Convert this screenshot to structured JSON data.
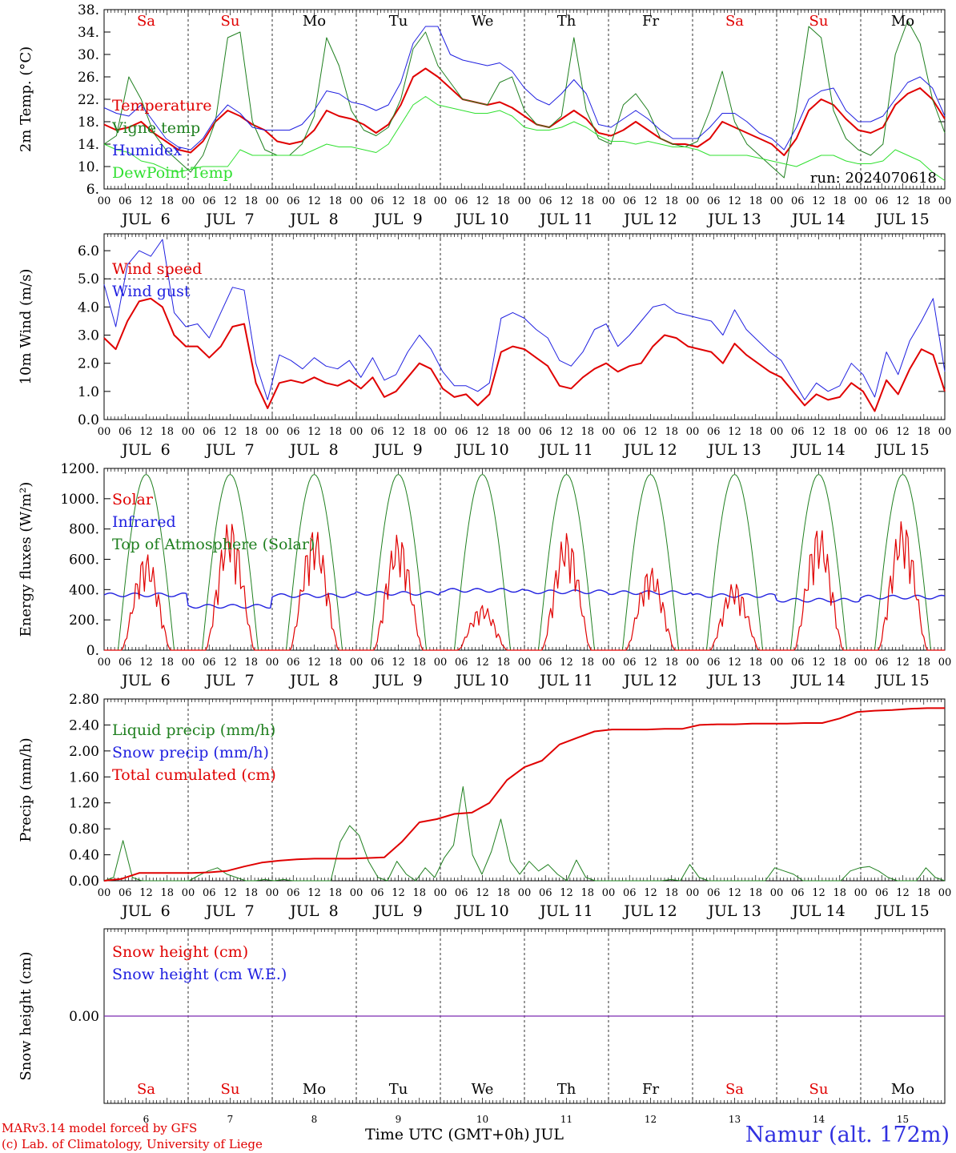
{
  "footer": {
    "model_line": "MARv3.14 model forced by GFS",
    "credit_line": "(c) Lab. of Climatology, University of Liege",
    "station": "Namur (alt. 172m)",
    "x_axis_label": "Time UTC (GMT+0h) JUL"
  },
  "chart_data": [
    {
      "type": "line",
      "id": "temperature",
      "ylabel": "2m Temp. (°C)",
      "ylim": [
        6,
        38
      ],
      "yticks": [
        "6.",
        "10.",
        "14.",
        "18.",
        "22.",
        "26.",
        "30.",
        "34.",
        "38."
      ],
      "annotation": "run: 2024070618",
      "weekdays": [
        "Sa",
        "Su",
        "Mo",
        "Tu",
        "We",
        "Th",
        "Fr",
        "Sa",
        "Su",
        "Mo"
      ],
      "weekday_colors": [
        "#e00000",
        "#e00000",
        "#000000",
        "#000000",
        "#000000",
        "#000000",
        "#000000",
        "#e00000",
        "#e00000",
        "#000000"
      ],
      "day_labels": [
        "JUL  6",
        "JUL  7",
        "JUL  8",
        "JUL  9",
        "JUL 10",
        "JUL 11",
        "JUL 12",
        "JUL 13",
        "JUL 14",
        "JUL 15"
      ],
      "hour_labels": [
        "00",
        "06",
        "12",
        "18"
      ],
      "x_hours": [
        0,
        3,
        6,
        9,
        12,
        15,
        18,
        21,
        24,
        27,
        30,
        33,
        36,
        39,
        42,
        45,
        48,
        51,
        54,
        57,
        60,
        63,
        66,
        69,
        72,
        75,
        78,
        81,
        84,
        87,
        90,
        93,
        96,
        99,
        102,
        105,
        108,
        111,
        114,
        117,
        120,
        123,
        126,
        129,
        132,
        135,
        138,
        141,
        144,
        147,
        150,
        153,
        156,
        159,
        162,
        165,
        168,
        171,
        174,
        177,
        180,
        183,
        186,
        189,
        192,
        195,
        198,
        201,
        204,
        207,
        210,
        213,
        216,
        219,
        222,
        225,
        228,
        231,
        234,
        237,
        240
      ],
      "series": [
        {
          "name": "Temperature",
          "color": "#e00000",
          "width": 2,
          "values": [
            17.5,
            16.5,
            17,
            18,
            16,
            14.5,
            13,
            12.5,
            14.5,
            18,
            20,
            19,
            17.5,
            16.5,
            14.5,
            14,
            14.5,
            16.5,
            20,
            19,
            18.5,
            17.5,
            16,
            17.5,
            21,
            26,
            27.5,
            26,
            24,
            22,
            21.5,
            21,
            21.5,
            20.5,
            19,
            17.5,
            17,
            18.5,
            20,
            18.5,
            16,
            15.5,
            16.5,
            18,
            16.5,
            15,
            14,
            14,
            13.5,
            15,
            18,
            17,
            16,
            15,
            14,
            12,
            15,
            20,
            22,
            21,
            18.5,
            16.5,
            16,
            17,
            21,
            23,
            24,
            22,
            18.5
          ]
        },
        {
          "name": "Vigne temp",
          "color": "#208020",
          "width": 1,
          "values": [
            14,
            15.5,
            26,
            22,
            16,
            13,
            11,
            9,
            12,
            18,
            33,
            34,
            18,
            13,
            12,
            12,
            14,
            19,
            33,
            28,
            20,
            16.5,
            15.5,
            17,
            22,
            31,
            34,
            28,
            25,
            22,
            21.5,
            21,
            25,
            26,
            20,
            17.5,
            17,
            19,
            33,
            20,
            15,
            14,
            21,
            23,
            20,
            15,
            14,
            13.5,
            14.5,
            20,
            27,
            18,
            14,
            12,
            10,
            8,
            20,
            35,
            33,
            20,
            15,
            13,
            12,
            14,
            30,
            36,
            32,
            22,
            16
          ]
        },
        {
          "name": "Humidex",
          "color": "#2020e0",
          "width": 1,
          "values": [
            20.5,
            19.5,
            19,
            21,
            18,
            15,
            13.5,
            13,
            15,
            18.5,
            21,
            19.5,
            17,
            16.5,
            16.5,
            16.5,
            17.5,
            20,
            23.5,
            23,
            21.5,
            21,
            20,
            21,
            25,
            32,
            35,
            35,
            30,
            29,
            28.5,
            28,
            28.5,
            27,
            24,
            22,
            21,
            23,
            25.5,
            23,
            17.5,
            17,
            18.5,
            20,
            18.5,
            16.5,
            15,
            15,
            15,
            17,
            19.5,
            19.5,
            18,
            16,
            15,
            13,
            17,
            22,
            23.5,
            24,
            20,
            18,
            18,
            19,
            22,
            25,
            26,
            24,
            19
          ]
        },
        {
          "name": "DewPoint Temp",
          "color": "#30e030",
          "width": 1,
          "values": [
            14,
            13,
            12.5,
            11,
            10.5,
            9.5,
            9,
            9.5,
            10,
            10,
            10,
            13,
            12,
            12,
            12,
            12,
            12,
            13,
            14,
            13.5,
            13.5,
            13,
            12.5,
            14,
            17.5,
            21,
            22.5,
            21,
            20.5,
            20,
            19.5,
            19.5,
            20,
            19,
            17,
            16.5,
            16.5,
            17,
            18,
            17,
            15.5,
            14.5,
            14.5,
            14,
            14.5,
            14,
            13.5,
            13.5,
            13,
            12,
            12,
            12,
            12,
            11.5,
            11,
            10.5,
            10,
            11,
            12,
            12,
            11,
            10.5,
            10.5,
            11,
            13,
            12,
            11,
            9,
            7.5
          ]
        }
      ]
    },
    {
      "type": "line",
      "id": "wind",
      "ylabel": "10m Wind (m/s)",
      "ylim": [
        0,
        6.6
      ],
      "yticks": [
        "0.0",
        "1.0",
        "2.0",
        "3.0",
        "4.0",
        "5.0",
        "6.0"
      ],
      "ref_line": 5.0,
      "day_labels": [
        "JUL  6",
        "JUL  7",
        "JUL  8",
        "JUL  9",
        "JUL 10",
        "JUL 11",
        "JUL 12",
        "JUL 13",
        "JUL 14",
        "JUL 15"
      ],
      "hour_labels": [
        "00",
        "06",
        "12",
        "18"
      ],
      "series": [
        {
          "name": "Wind speed",
          "color": "#e00000",
          "width": 2,
          "values": [
            2.9,
            2.5,
            3.5,
            4.2,
            4.3,
            4.0,
            3.0,
            2.6,
            2.6,
            2.2,
            2.6,
            3.3,
            3.4,
            1.3,
            0.4,
            1.3,
            1.4,
            1.3,
            1.5,
            1.3,
            1.2,
            1.4,
            1.1,
            1.5,
            0.8,
            1.0,
            1.5,
            2.0,
            1.8,
            1.1,
            0.8,
            0.9,
            0.5,
            0.9,
            2.4,
            2.6,
            2.5,
            2.2,
            1.9,
            1.2,
            1.1,
            1.5,
            1.8,
            2.0,
            1.7,
            1.9,
            2.0,
            2.6,
            3.0,
            2.9,
            2.6,
            2.5,
            2.4,
            2.0,
            2.7,
            2.3,
            2.0,
            1.7,
            1.5,
            1.0,
            0.5,
            0.9,
            0.7,
            0.8,
            1.3,
            1.0,
            0.3,
            1.4,
            0.9,
            1.8,
            2.5,
            2.3,
            1.0
          ]
        },
        {
          "name": "Wind gust",
          "color": "#2020e0",
          "width": 1,
          "values": [
            4.8,
            3.3,
            5.5,
            6.0,
            5.8,
            6.4,
            3.8,
            3.3,
            3.4,
            2.9,
            3.8,
            4.7,
            4.6,
            2.0,
            0.7,
            2.3,
            2.1,
            1.8,
            2.2,
            1.9,
            1.8,
            2.1,
            1.5,
            2.2,
            1.4,
            1.6,
            2.4,
            3.0,
            2.5,
            1.7,
            1.2,
            1.2,
            1.0,
            1.3,
            3.6,
            3.8,
            3.6,
            3.2,
            2.9,
            2.1,
            1.9,
            2.4,
            3.2,
            3.4,
            2.6,
            3.0,
            3.5,
            4.0,
            4.1,
            3.8,
            3.7,
            3.6,
            3.5,
            3.0,
            3.9,
            3.2,
            2.8,
            2.4,
            2.1,
            1.4,
            0.7,
            1.3,
            1.0,
            1.2,
            2.0,
            1.6,
            0.8,
            2.4,
            1.6,
            2.8,
            3.5,
            4.3,
            1.7
          ]
        }
      ]
    },
    {
      "type": "line",
      "id": "energy",
      "ylabel": "Energy fluxes (W/m²)",
      "ylim": [
        0,
        1200
      ],
      "yticks": [
        "0.",
        "200.",
        "400.",
        "600.",
        "800.",
        "1000.",
        "1200."
      ],
      "day_labels": [
        "JUL  6",
        "JUL  7",
        "JUL  8",
        "JUL  9",
        "JUL 10",
        "JUL 11",
        "JUL 12",
        "JUL 13",
        "JUL 14",
        "JUL 15"
      ],
      "hour_labels": [
        "00",
        "06",
        "12",
        "18"
      ],
      "toa_peak": 1160,
      "solar_daily_peaks": [
        640,
        860,
        810,
        770,
        300,
        780,
        550,
        450,
        820,
        860
      ],
      "infrared_level": [
        365,
        290,
        360,
        375,
        395,
        385,
        380,
        360,
        330,
        350
      ],
      "series": [
        {
          "name": "Solar",
          "color": "#e00000",
          "width": 1
        },
        {
          "name": "Infrared",
          "color": "#2020e0",
          "width": 1
        },
        {
          "name": "Top of Atmosphere (Solar)",
          "color": "#208020",
          "width": 1
        }
      ]
    },
    {
      "type": "line",
      "id": "precip",
      "ylabel": "Precip (mm/h)",
      "ylim": [
        0,
        2.8
      ],
      "yticks": [
        "0.00",
        "0.40",
        "0.80",
        "1.20",
        "1.60",
        "2.00",
        "2.40",
        "2.80"
      ],
      "day_labels": [
        "JUL  6",
        "JUL  7",
        "JUL  8",
        "JUL  9",
        "JUL 10",
        "JUL 11",
        "JUL 12",
        "JUL 13",
        "JUL 14",
        "JUL 15"
      ],
      "hour_labels": [
        "00",
        "06",
        "12",
        "18"
      ],
      "series": [
        {
          "name": "Liquid precip (mm/h)",
          "color": "#208020",
          "width": 1,
          "values": [
            0,
            0.05,
            0.62,
            0.05,
            0,
            0,
            0,
            0,
            0,
            0,
            0.08,
            0.15,
            0.2,
            0.1,
            0.05,
            0,
            0,
            0.02,
            0,
            0.02,
            0,
            0,
            0,
            0,
            0,
            0.6,
            0.85,
            0.7,
            0.3,
            0.05,
            0,
            0.3,
            0.1,
            0,
            0.2,
            0.05,
            0.35,
            0.55,
            1.45,
            0.4,
            0.1,
            0.45,
            0.95,
            0.3,
            0.1,
            0.3,
            0.15,
            0.25,
            0.1,
            0,
            0.32,
            0.05,
            0,
            0,
            0,
            0,
            0,
            0,
            0,
            0,
            0.02,
            0,
            0.25,
            0.05,
            0,
            0,
            0,
            0,
            0,
            0,
            0,
            0.2,
            0.15,
            0.1,
            0,
            0,
            0,
            0,
            0,
            0.15,
            0.2,
            0.22,
            0.15,
            0.05,
            0,
            0,
            0,
            0.2,
            0.05,
            0
          ]
        },
        {
          "name": "Snow precip (mm/h)",
          "color": "#2020e0",
          "width": 1,
          "values": []
        },
        {
          "name": "Total cumulated (cm)",
          "color": "#e00000",
          "width": 2,
          "values": [
            0.0,
            0.03,
            0.12,
            0.12,
            0.12,
            0.12,
            0.13,
            0.15,
            0.22,
            0.28,
            0.31,
            0.33,
            0.34,
            0.34,
            0.34,
            0.35,
            0.36,
            0.6,
            0.9,
            0.95,
            1.03,
            1.05,
            1.2,
            1.55,
            1.75,
            1.85,
            2.1,
            2.2,
            2.3,
            2.33,
            2.33,
            2.33,
            2.34,
            2.34,
            2.4,
            2.41,
            2.41,
            2.42,
            2.42,
            2.42,
            2.43,
            2.43,
            2.5,
            2.6,
            2.62,
            2.63,
            2.65,
            2.66,
            2.66
          ]
        }
      ]
    },
    {
      "type": "line",
      "id": "snow",
      "ylabel": "Snow height (cm)",
      "ytick": "0.00",
      "weekdays": [
        "Sa",
        "Su",
        "Mo",
        "Tu",
        "We",
        "Th",
        "Fr",
        "Sa",
        "Su",
        "Mo"
      ],
      "weekday_colors": [
        "#e00000",
        "#e00000",
        "#000000",
        "#000000",
        "#000000",
        "#000000",
        "#000000",
        "#e00000",
        "#e00000",
        "#000000"
      ],
      "day_numbers": [
        "6",
        "7",
        "8",
        "9",
        "10",
        "11",
        "12",
        "13",
        "14",
        "15"
      ],
      "series": [
        {
          "name": "Snow height (cm)",
          "color": "#e00000",
          "width": 1,
          "values": [
            0,
            0
          ]
        },
        {
          "name": "Snow height (cm W.E.)",
          "color": "#2020e0",
          "width": 1,
          "values": [
            0,
            0
          ]
        }
      ]
    }
  ]
}
